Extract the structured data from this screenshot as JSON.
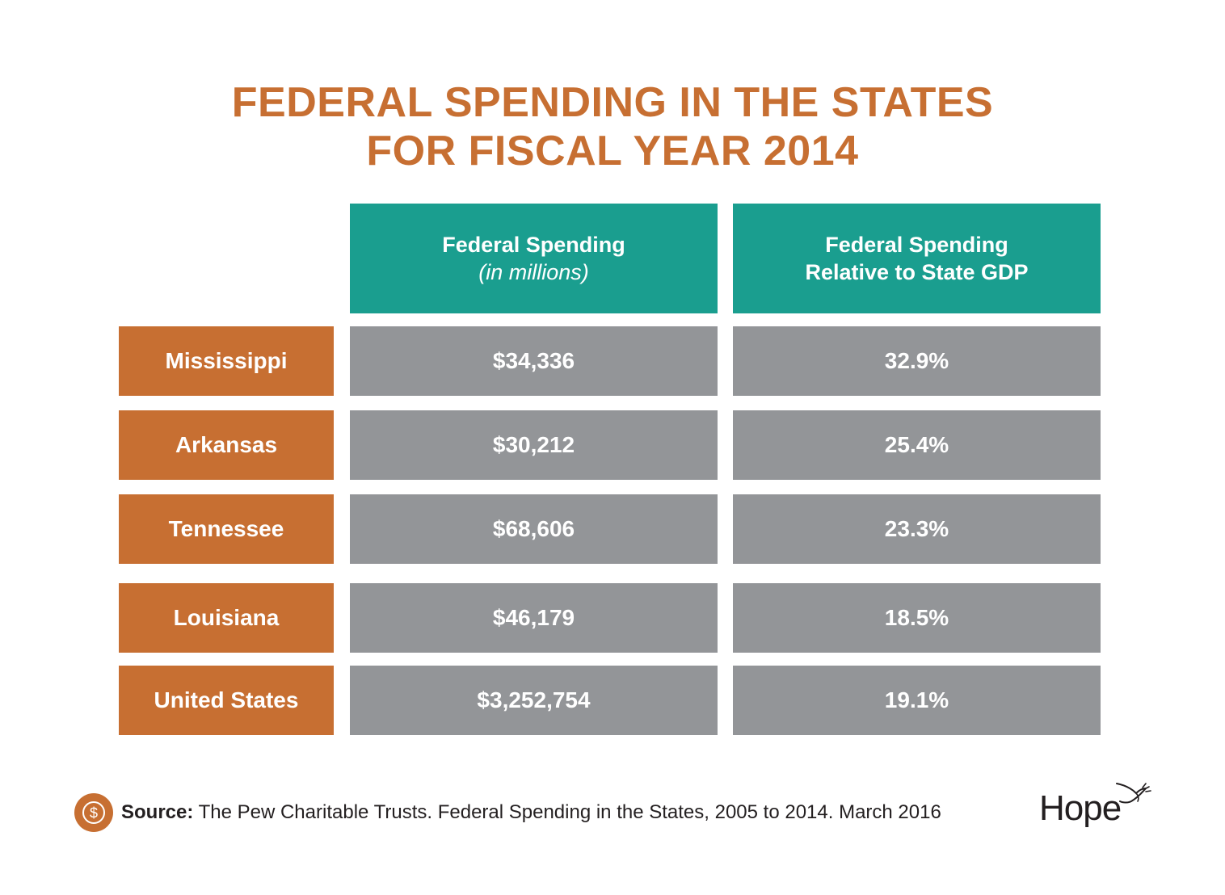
{
  "title": {
    "line1": "FEDERAL SPENDING IN THE STATES",
    "line2": "FOR FISCAL YEAR 2014"
  },
  "colors": {
    "title": "#c76f32",
    "header_bg": "#1a9e8f",
    "state_bg": "#c76f32",
    "value_bg": "#939598"
  },
  "chart_data": {
    "type": "table",
    "columns": [
      {
        "line1": "Federal Spending",
        "line2": "(in millions)"
      },
      {
        "line1": "Federal Spending",
        "line2": "Relative to State GDP"
      }
    ],
    "rows": [
      {
        "state": "Mississippi",
        "spending": "$34,336",
        "relative": "32.9%"
      },
      {
        "state": "Arkansas",
        "spending": "$30,212",
        "relative": "25.4%"
      },
      {
        "state": "Tennessee",
        "spending": "$68,606",
        "relative": "23.3%"
      },
      {
        "state": "Louisiana",
        "spending": "$46,179",
        "relative": "18.5%"
      },
      {
        "state": "United States",
        "spending": "$3,252,754",
        "relative": "19.1%"
      }
    ]
  },
  "footer": {
    "source_label": "Source:",
    "source_text": " The Pew Charitable Trusts. Federal Spending in the States, 2005 to 2014. March 2016",
    "coin_icon": "dollar-coin-icon",
    "logo_text": "Hope"
  }
}
